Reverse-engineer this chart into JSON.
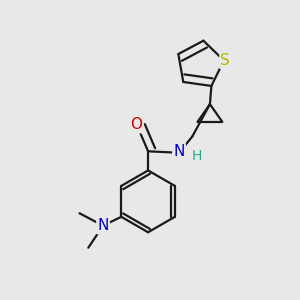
{
  "bg_color": "#e8e8e8",
  "bond_color": "#1a1a1a",
  "bond_width": 1.6,
  "S_color": "#b8b800",
  "N_color": "#0000cc",
  "O_color": "#cc0000",
  "H_color": "#2aaa88",
  "font_size_atom": 10.5,
  "fig_size": [
    3.0,
    3.0
  ],
  "dpi": 100,
  "xlim": [
    0,
    10
  ],
  "ylim": [
    0,
    10
  ]
}
